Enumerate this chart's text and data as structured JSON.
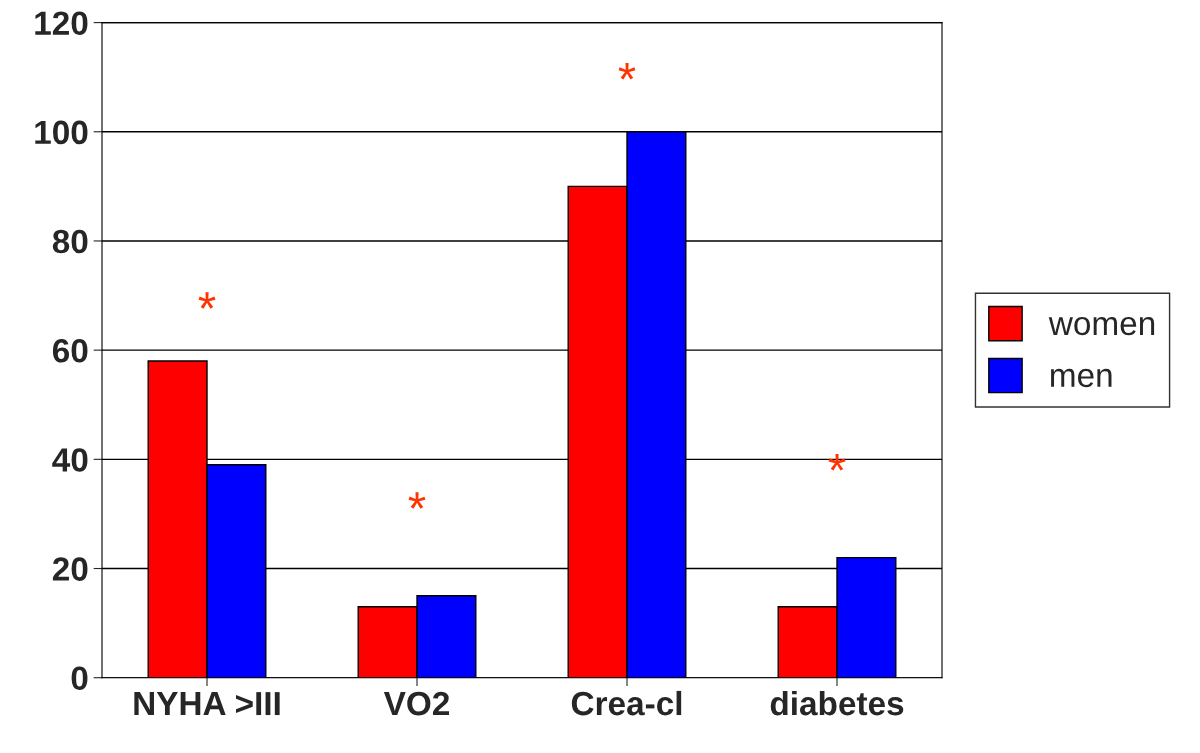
{
  "chart_data": {
    "type": "bar",
    "categories": [
      "NYHA >III",
      "VO2",
      "Crea-cl",
      "diabetes"
    ],
    "series": [
      {
        "name": "women",
        "color": "#ff0000",
        "values": [
          58,
          13,
          90,
          13
        ]
      },
      {
        "name": "men",
        "color": "#0000ff",
        "values": [
          39,
          15,
          100,
          22
        ]
      }
    ],
    "ylim": [
      0,
      120
    ],
    "yticks": [
      0,
      20,
      40,
      60,
      80,
      100,
      120
    ],
    "grid": "y",
    "legend": "right",
    "annotations": [
      "*",
      "*",
      "*",
      "*"
    ]
  }
}
